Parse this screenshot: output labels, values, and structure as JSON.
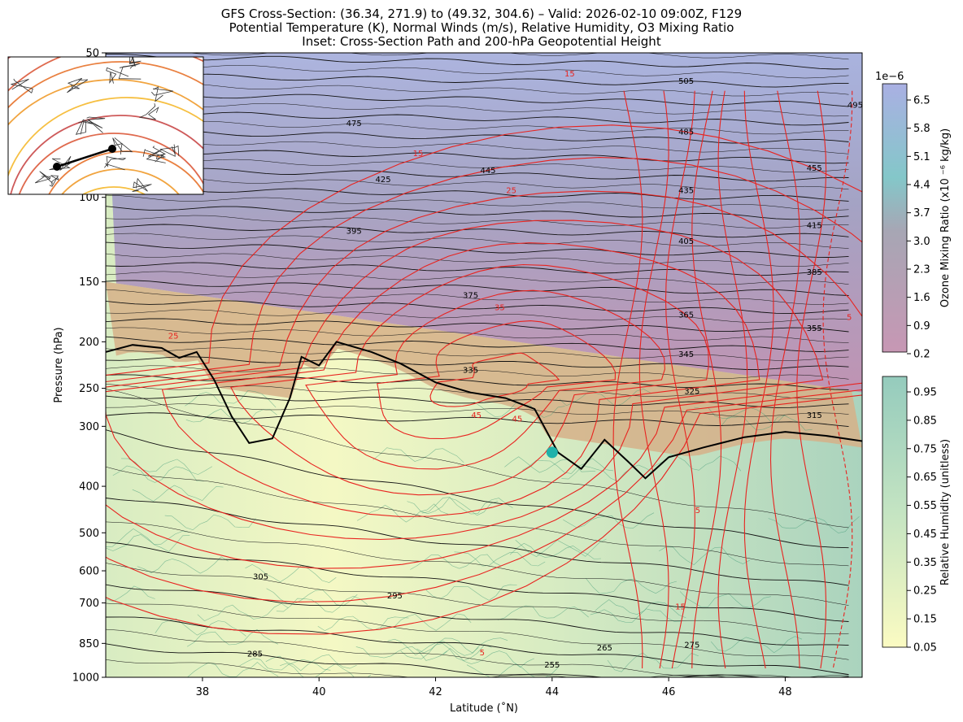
{
  "title_lines": [
    "GFS Cross-Section: (36.34, 271.9) to (49.32, 304.6) – Valid: 2026-02-10 09:00Z, F129",
    "Potential Temperature (K), Normal Winds (m/s), Relative Humidity, O3 Mixing Ratio",
    "Inset: Cross-Section Path and 200-hPa Geopotential Height"
  ],
  "chart_data": {
    "type": "contour",
    "xlabel": "Latitude (˚N)",
    "ylabel": "Pressure (hPa)",
    "xlim": [
      36.34,
      49.32
    ],
    "ylim": [
      1000,
      50
    ],
    "y_scale": "log",
    "x_ticks": [
      38,
      40,
      42,
      44,
      46,
      48
    ],
    "y_ticks": [
      50,
      100,
      150,
      200,
      250,
      300,
      400,
      500,
      600,
      700,
      850,
      1000
    ],
    "potential_temperature_labels": [
      {
        "label": "505",
        "lat": 46.3,
        "p": 58
      },
      {
        "label": "495",
        "lat": 49.2,
        "p": 65
      },
      {
        "label": "485",
        "lat": 46.3,
        "p": 74
      },
      {
        "label": "475",
        "lat": 40.6,
        "p": 71
      },
      {
        "label": "455",
        "lat": 48.5,
        "p": 88
      },
      {
        "label": "445",
        "lat": 42.9,
        "p": 89
      },
      {
        "label": "435",
        "lat": 46.3,
        "p": 98
      },
      {
        "label": "425",
        "lat": 41.1,
        "p": 93
      },
      {
        "label": "415",
        "lat": 48.5,
        "p": 116
      },
      {
        "label": "405",
        "lat": 46.3,
        "p": 125
      },
      {
        "label": "395",
        "lat": 40.6,
        "p": 119
      },
      {
        "label": "385",
        "lat": 48.5,
        "p": 145
      },
      {
        "label": "375",
        "lat": 42.6,
        "p": 162
      },
      {
        "label": "365",
        "lat": 46.3,
        "p": 178
      },
      {
        "label": "355",
        "lat": 48.5,
        "p": 190
      },
      {
        "label": "345",
        "lat": 46.3,
        "p": 215
      },
      {
        "label": "335",
        "lat": 42.6,
        "p": 232
      },
      {
        "label": "325",
        "lat": 46.4,
        "p": 257
      },
      {
        "label": "315",
        "lat": 48.5,
        "p": 288
      },
      {
        "label": "305",
        "lat": 39.0,
        "p": 625
      },
      {
        "label": "295",
        "lat": 41.3,
        "p": 685
      },
      {
        "label": "285",
        "lat": 38.9,
        "p": 905
      },
      {
        "label": "275",
        "lat": 46.4,
        "p": 868
      },
      {
        "label": "265",
        "lat": 44.9,
        "p": 880
      },
      {
        "label": "255",
        "lat": 44.0,
        "p": 955
      }
    ],
    "normal_wind_labels": [
      {
        "label": "15",
        "lat": 44.3,
        "p": 56
      },
      {
        "label": "15",
        "lat": 41.7,
        "p": 82
      },
      {
        "label": "25",
        "lat": 43.3,
        "p": 98
      },
      {
        "label": "35",
        "lat": 43.1,
        "p": 172
      },
      {
        "label": "25",
        "lat": 37.5,
        "p": 197
      },
      {
        "label": "45",
        "lat": 42.7,
        "p": 288
      },
      {
        "label": "45",
        "lat": 43.4,
        "p": 293
      },
      {
        "label": "15",
        "lat": 46.2,
        "p": 722
      },
      {
        "label": "5",
        "lat": 46.5,
        "p": 455
      },
      {
        "label": "5",
        "lat": 42.8,
        "p": 900
      },
      {
        "label": "5",
        "lat": 49.1,
        "p": 180
      }
    ],
    "tropopause_theta_path": [
      {
        "lat": 36.34,
        "p": 210
      },
      {
        "lat": 36.8,
        "p": 203
      },
      {
        "lat": 37.3,
        "p": 206
      },
      {
        "lat": 37.6,
        "p": 216
      },
      {
        "lat": 37.9,
        "p": 210
      },
      {
        "lat": 38.2,
        "p": 240
      },
      {
        "lat": 38.5,
        "p": 286
      },
      {
        "lat": 38.8,
        "p": 325
      },
      {
        "lat": 39.2,
        "p": 318
      },
      {
        "lat": 39.5,
        "p": 262
      },
      {
        "lat": 39.7,
        "p": 215
      },
      {
        "lat": 40.0,
        "p": 224
      },
      {
        "lat": 40.3,
        "p": 200
      },
      {
        "lat": 40.9,
        "p": 210
      },
      {
        "lat": 41.4,
        "p": 222
      },
      {
        "lat": 42.0,
        "p": 243
      },
      {
        "lat": 42.6,
        "p": 255
      },
      {
        "lat": 43.2,
        "p": 262
      },
      {
        "lat": 43.7,
        "p": 276
      },
      {
        "lat": 44.1,
        "p": 340
      },
      {
        "lat": 44.5,
        "p": 368
      },
      {
        "lat": 44.9,
        "p": 320
      },
      {
        "lat": 45.3,
        "p": 355
      },
      {
        "lat": 45.6,
        "p": 385
      },
      {
        "lat": 46.0,
        "p": 348
      },
      {
        "lat": 46.6,
        "p": 332
      },
      {
        "lat": 47.3,
        "p": 316
      },
      {
        "lat": 48.0,
        "p": 308
      },
      {
        "lat": 48.7,
        "p": 314
      },
      {
        "lat": 49.32,
        "p": 322
      }
    ],
    "marker": {
      "lat": 44.0,
      "p": 340,
      "color": "#20b2aa"
    },
    "colorbars": [
      {
        "label": "Ozone Mixing Ratio (x10 ⁻⁶ kg/kg)",
        "exponent": "1e−6",
        "ticks": [
          "6.5",
          "5.8",
          "5.1",
          "4.4",
          "3.7",
          "3.0",
          "2.3",
          "1.6",
          "0.9",
          "0.2"
        ],
        "colors": [
          "#aab0e3",
          "#84c7c9",
          "#c08fb0"
        ]
      },
      {
        "label": "Relative Humidity (unitless)",
        "ticks": [
          "0.95",
          "0.85",
          "0.75",
          "0.65",
          "0.55",
          "0.45",
          "0.35",
          "0.25",
          "0.15",
          "0.05"
        ],
        "colors": [
          "#95cbbd",
          "#c4e4c2",
          "#fbfbc2"
        ]
      }
    ],
    "inset": {
      "path_start": "(36.34, 271.9)",
      "path_end": "(49.32, 304.6)",
      "level": "200-hPa Geopotential Height"
    }
  }
}
